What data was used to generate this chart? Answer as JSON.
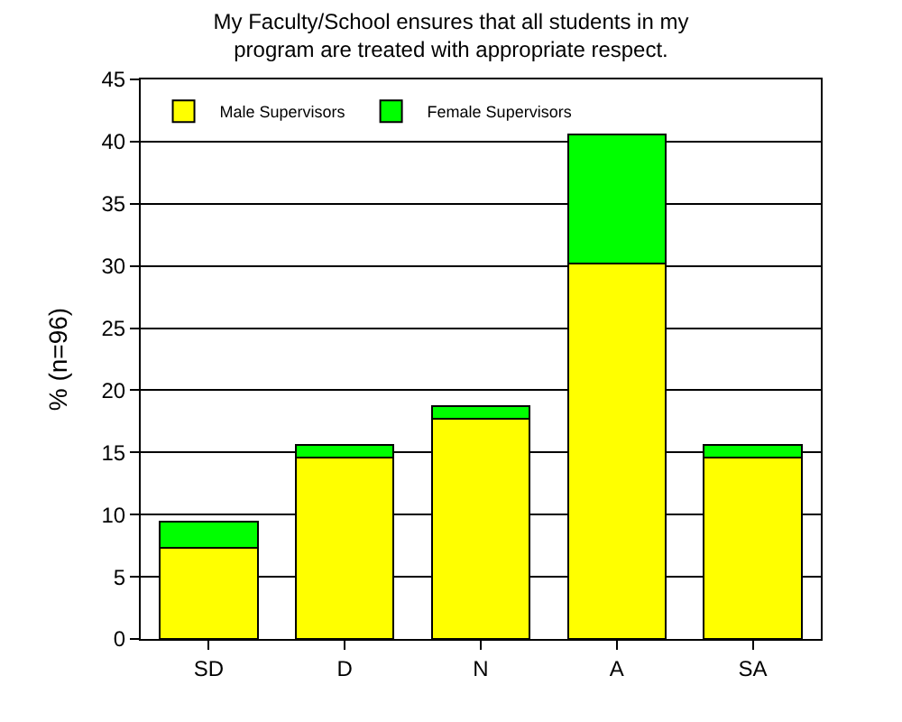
{
  "chart_data": {
    "type": "bar",
    "title": "My Faculty/School ensures that all students in my\nprogram are treated with appropriate respect.",
    "ylabel": "% (n=96)",
    "categories": [
      "SD",
      "D",
      "N",
      "A",
      "SA"
    ],
    "series": [
      {
        "name": "Male Supervisors",
        "color": "#ffff00",
        "values": [
          7.3,
          14.6,
          17.7,
          30.2,
          14.6
        ]
      },
      {
        "name": "Female Supervisors",
        "color": "#00ff00",
        "values": [
          2.1,
          1.0,
          1.0,
          10.4,
          1.0
        ]
      }
    ],
    "stacked": true,
    "ylim": [
      0,
      45
    ],
    "yticks": [
      0,
      5,
      10,
      15,
      20,
      25,
      30,
      35,
      40,
      45
    ],
    "grid": "y",
    "legend": "top left"
  }
}
